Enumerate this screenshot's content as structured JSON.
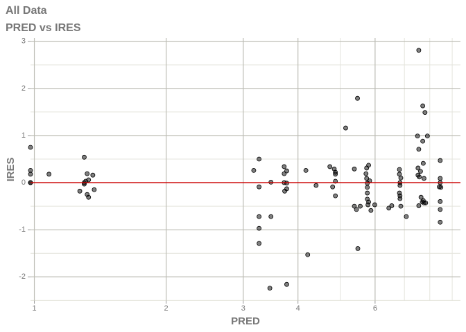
{
  "chart_data": {
    "type": "scatter",
    "title": "All Data",
    "subtitle": "PRED vs IRES",
    "x_label": "PRED",
    "y_label": "IRES",
    "x_log": true,
    "grid": true,
    "xlim": [
      0.98,
      9.4
    ],
    "ylim": [
      -2.51,
      3.07
    ],
    "xticks": [
      1,
      2,
      3,
      4,
      6
    ],
    "x_minor_ticks": [
      5,
      7,
      8,
      9
    ],
    "yticks": [
      -2,
      -1,
      0,
      1,
      2,
      3
    ],
    "y_minor_ticks": [
      -2.5,
      -1.5,
      -0.5,
      0.5,
      1.5,
      2.5
    ],
    "hline": 0,
    "hline_color": "#cc0000",
    "series": [
      {
        "color": "#000000",
        "x": [
          0.98,
          0.98,
          0.98,
          0.98,
          0.98,
          1.08,
          1.27,
          1.3,
          1.3,
          1.31,
          1.32,
          1.33,
          1.32,
          1.33,
          1.36,
          1.37,
          1.3,
          3.17,
          3.26,
          3.26,
          3.26,
          3.26,
          3.26,
          3.47,
          3.47,
          3.45,
          3.72,
          3.72,
          3.72,
          3.73,
          3.77,
          3.77,
          3.77,
          3.77,
          4.17,
          4.21,
          4.4,
          4.73,
          4.8,
          4.84,
          4.87,
          4.87,
          4.87,
          4.87,
          5.14,
          5.38,
          5.38,
          5.44,
          5.47,
          5.48,
          5.55,
          5.72,
          5.74,
          5.74,
          5.76,
          5.76,
          5.76,
          5.76,
          5.78,
          5.8,
          5.8,
          5.83,
          5.87,
          5.99,
          6.45,
          6.55,
          6.82,
          6.82,
          6.84,
          6.82,
          6.84,
          6.84,
          6.84,
          6.87,
          6.87,
          7.07,
          7.5,
          7.55,
          7.55,
          7.52,
          7.52,
          7.57,
          7.55,
          7.62,
          7.64,
          7.69,
          7.71,
          7.71,
          7.73,
          7.76,
          7.73,
          7.76,
          7.8,
          7.83,
          7.9,
          8.45,
          8.45,
          8.45,
          8.41,
          8.45,
          8.45,
          8.45,
          8.48
        ],
        "values": [
          0.75,
          0.26,
          0.18,
          0,
          0,
          0.18,
          -0.18,
          0.54,
          0,
          0.03,
          0.19,
          0.06,
          -0.25,
          -0.31,
          0.16,
          -0.15,
          -0.03,
          0.26,
          0.5,
          -0.09,
          -0.72,
          -0.97,
          -1.29,
          0.01,
          -0.72,
          -2.24,
          0.34,
          0.19,
          0,
          -0.18,
          0.25,
          -0.01,
          -0.13,
          -2.16,
          0.26,
          -1.53,
          -0.06,
          0.34,
          -0.09,
          0.29,
          0.22,
          0.18,
          0.03,
          -0.28,
          1.16,
          0.29,
          -0.5,
          -0.57,
          1.79,
          -1.4,
          -0.5,
          0.19,
          0.31,
          0.09,
          -0.01,
          -0.1,
          -0.22,
          -0.35,
          -0.47,
          0.37,
          -0.41,
          0.04,
          -0.59,
          -0.47,
          -0.54,
          -0.49,
          0.28,
          0.18,
          0,
          -0.22,
          -0.28,
          -0.34,
          -0.06,
          -0.5,
          0.1,
          -0.72,
          0.99,
          2.81,
          0.71,
          0.31,
          0.16,
          0.12,
          -0.49,
          0.24,
          -0.31,
          -0.41,
          1.63,
          0.88,
          0.41,
          0.09,
          -0.38,
          -0.43,
          1.49,
          -0.43,
          0.99,
          0.47,
          0.09,
          0,
          -0.09,
          -0.4,
          -0.57,
          -0.84,
          -0.1
        ]
      }
    ]
  }
}
